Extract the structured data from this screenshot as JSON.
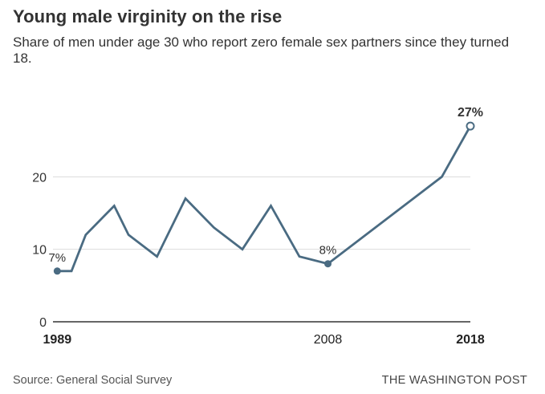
{
  "header": {
    "title": "Young male virginity on the rise",
    "subtitle": "Share of men under age 30 who report zero female sex partners since they turned 18."
  },
  "footer": {
    "source": "Source: General Social Survey",
    "brand": "THE WASHINGTON POST"
  },
  "chart_data": {
    "type": "line",
    "title": "Young male virginity on the rise",
    "subtitle": "Share of men under age 30 who report zero female sex partners since they turned 18.",
    "xlabel": "",
    "ylabel": "",
    "xlim": [
      1988.7,
      2018
    ],
    "ylim": [
      0,
      30
    ],
    "y_ticks": [
      0,
      10,
      20
    ],
    "x_ticks": [
      {
        "value": 1989,
        "label": "1989",
        "bold": true
      },
      {
        "value": 2008,
        "label": "2008",
        "bold": false
      },
      {
        "value": 2018,
        "label": "2018",
        "bold": true
      }
    ],
    "grid": true,
    "line_color": "#4a6b82",
    "series": [
      {
        "points": [
          {
            "x": 1989,
            "y": 7
          },
          {
            "x": 1990,
            "y": 7
          },
          {
            "x": 1991,
            "y": 12
          },
          {
            "x": 1993,
            "y": 16
          },
          {
            "x": 1994,
            "y": 12
          },
          {
            "x": 1996,
            "y": 9
          },
          {
            "x": 1998,
            "y": 17
          },
          {
            "x": 2000,
            "y": 13
          },
          {
            "x": 2002,
            "y": 10
          },
          {
            "x": 2004,
            "y": 16
          },
          {
            "x": 2006,
            "y": 9
          },
          {
            "x": 2008,
            "y": 8
          },
          {
            "x": 2016,
            "y": 20
          },
          {
            "x": 2018,
            "y": 27
          }
        ]
      }
    ],
    "annotations": [
      {
        "x": 1989,
        "y": 7,
        "label": "7%",
        "marker": "filled",
        "bold": false
      },
      {
        "x": 2008,
        "y": 8,
        "label": "8%",
        "marker": "filled",
        "bold": false
      },
      {
        "x": 2018,
        "y": 27,
        "label": "27%",
        "marker": "open",
        "bold": true
      }
    ]
  }
}
